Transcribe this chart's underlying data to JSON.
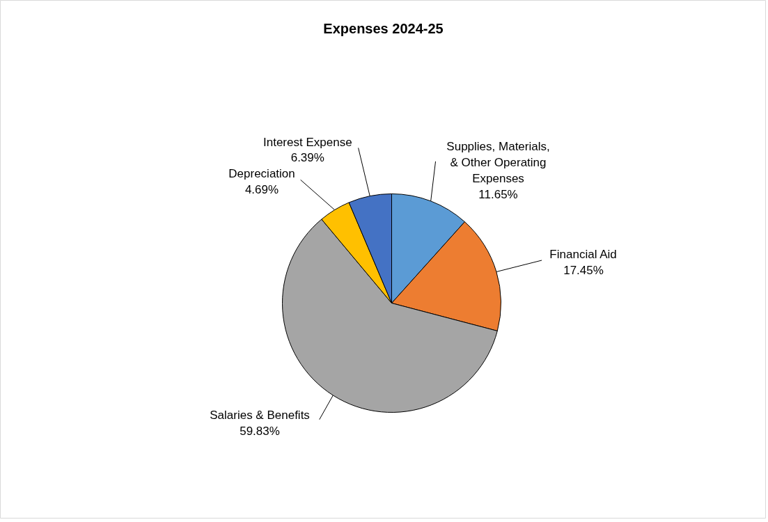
{
  "chart_data": {
    "type": "pie",
    "title": "Expenses 2024-25",
    "categories": [
      "Supplies, Materials, & Other Operating Expenses",
      "Financial Aid",
      "Salaries & Benefits",
      "Depreciation",
      "Interest Expense"
    ],
    "values": [
      11.65,
      17.45,
      59.83,
      4.69,
      6.39
    ],
    "value_labels": [
      "11.65%",
      "17.45%",
      "59.83%",
      "4.69%",
      "6.39%"
    ],
    "colors": [
      "#5b9bd5",
      "#ed7d31",
      "#a5a5a5",
      "#ffc000",
      "#4472c4"
    ]
  }
}
